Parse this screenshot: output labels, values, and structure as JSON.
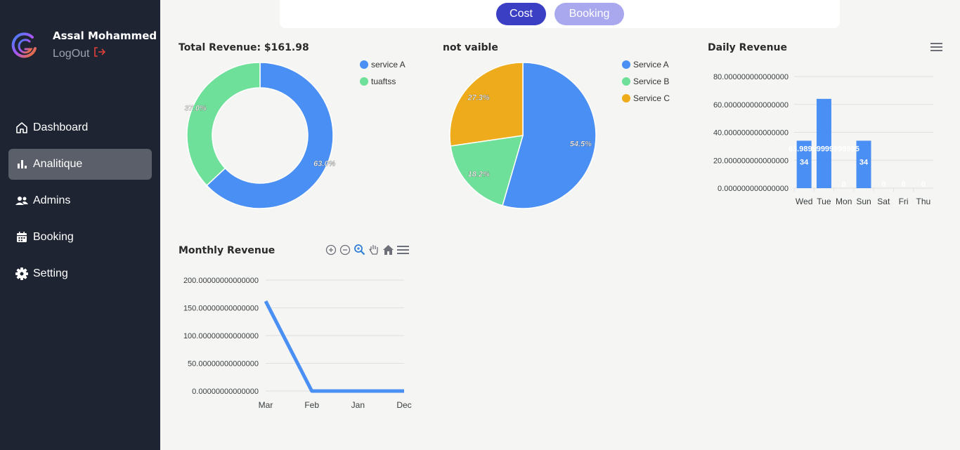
{
  "user": {
    "name": "Assal Mohammed",
    "logout_label": "LogOut"
  },
  "nav": [
    {
      "label": "Dashboard",
      "icon": "home-icon",
      "active": false
    },
    {
      "label": "Analitique",
      "icon": "bar-chart-icon",
      "active": true
    },
    {
      "label": "Admins",
      "icon": "users-icon",
      "active": false
    },
    {
      "label": "Booking",
      "icon": "calendar-icon",
      "active": false
    },
    {
      "label": "Setting",
      "icon": "gear-icon",
      "active": false
    }
  ],
  "toggle": {
    "cost_label": "Cost",
    "booking_label": "Booking"
  },
  "colors": {
    "blue": "#4a8ff3",
    "green": "#6ee09a",
    "orange": "#eeac1c",
    "sidebar": "#1f2433",
    "accent": "#3b3fc4"
  },
  "chart_data": [
    {
      "type": "pie",
      "variant": "donut",
      "title": "Total Revenue: $161.98",
      "labels": [
        "service A",
        "tuaftss"
      ],
      "values": [
        63.0,
        37.0
      ],
      "value_labels": [
        "63.0%",
        "37.0%"
      ],
      "legend_placement": "top-right"
    },
    {
      "type": "pie",
      "title": "not vaible",
      "labels": [
        "Service A",
        "Service B",
        "Service C"
      ],
      "values": [
        54.5,
        18.2,
        27.3
      ],
      "value_labels": [
        "54.5%",
        "18.2%",
        "27.3%"
      ],
      "legend_placement": "top-right"
    },
    {
      "type": "bar",
      "title": "Daily Revenue",
      "categories": [
        "Wed",
        "Tue",
        "Mon",
        "Sun",
        "Sat",
        "Fri",
        "Thu"
      ],
      "values": [
        33.99,
        63.99,
        0,
        34,
        0,
        0,
        0
      ],
      "data_labels": [
        "34",
        "",
        "0",
        "34",
        "0",
        "0",
        "0"
      ],
      "overflow_label": "63.98999999999995",
      "yticks": [
        "0.000000000000000",
        "20.000000000000000",
        "40.000000000000000",
        "60.000000000000000",
        "80.000000000000000"
      ],
      "ylim": [
        0,
        80
      ],
      "grid": true
    },
    {
      "type": "line",
      "title": "Monthly Revenue",
      "categories": [
        "Mar",
        "Feb",
        "Jan",
        "Dec"
      ],
      "values": [
        161.98,
        0,
        0,
        0
      ],
      "yticks": [
        "0.00000000000000",
        "50.00000000000000",
        "100.00000000000000",
        "150.00000000000000",
        "200.00000000000000"
      ],
      "ylim": [
        0,
        200
      ],
      "grid": true
    }
  ]
}
